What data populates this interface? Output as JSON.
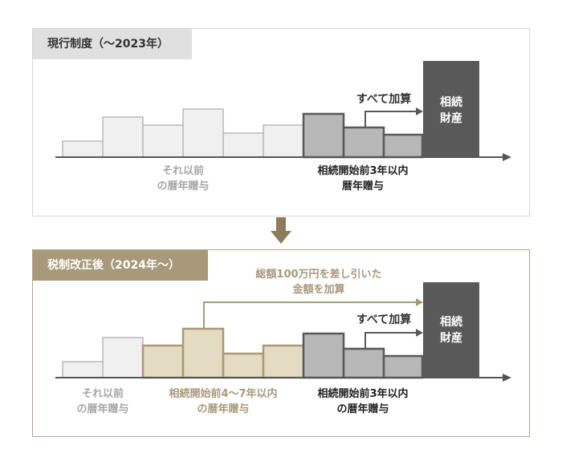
{
  "top": {
    "tag": "現行制度（〜2023年）",
    "all_added": "すべて加算",
    "estate": [
      "相続",
      "財産"
    ],
    "earlier": [
      "それ以前",
      "の暦年贈与"
    ],
    "within3": [
      "相続開始前3年以内",
      "暦年贈与"
    ]
  },
  "bottom": {
    "tag": "税制改正後（2024年〜）",
    "note": [
      "総額100万円を差し引いた",
      "金額を加算"
    ],
    "all_added": "すべて加算",
    "estate": [
      "相続",
      "財産"
    ],
    "earlier": [
      "それ以前",
      "の暦年贈与"
    ],
    "within4to7": [
      "相続開始前4〜7年以内",
      "の暦年贈与"
    ],
    "within3": [
      "相続開始前3年以内",
      "の暦年贈与"
    ]
  },
  "colors": {
    "light_bar": "#f0f0f0",
    "gray_bar": "#b7b7b7",
    "beige_bar": "#e3dcc2",
    "dark": "#595959",
    "beige_text": "#a8997a",
    "gray_text": "#a6a6a6"
  }
}
